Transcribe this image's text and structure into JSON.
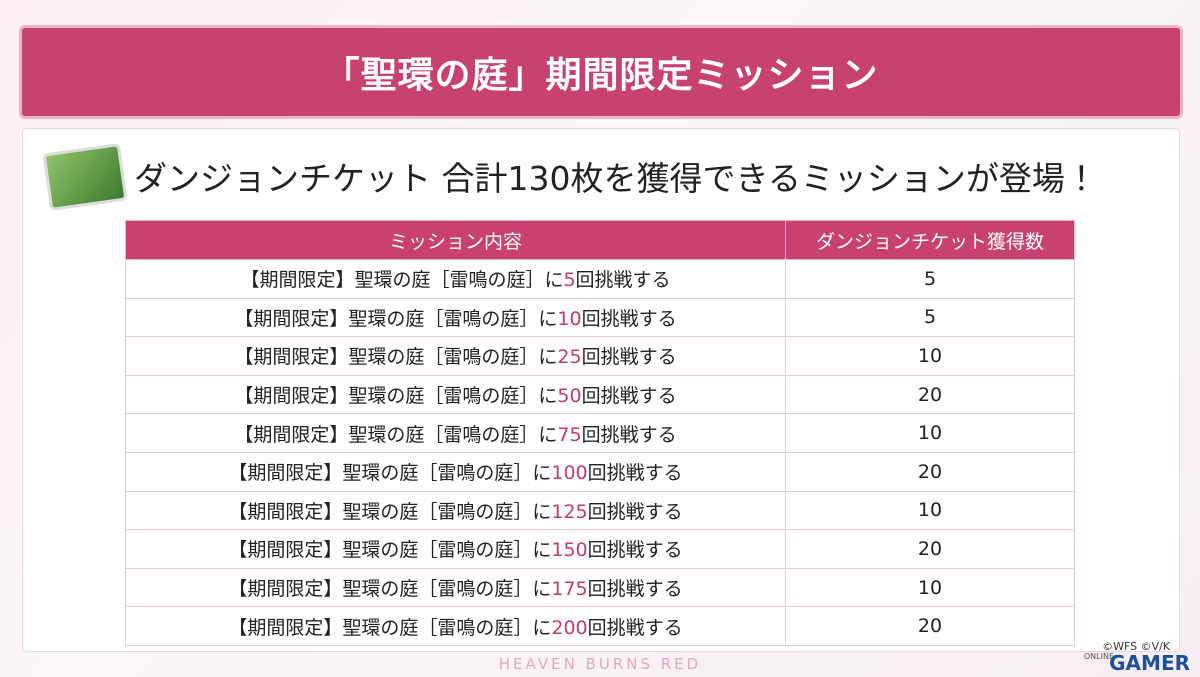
{
  "header": {
    "title": "「聖環の庭」期間限定ミッション"
  },
  "subtitle": "ダンジョンチケット 合計130枚を獲得できるミッションが登場！",
  "table": {
    "headers": [
      "ミッション内容",
      "ダンジョンチケット獲得数"
    ],
    "rows": [
      {
        "prefix": "【期間限定】聖環の庭［雷鳴の庭］に",
        "count": 5,
        "suffix": "回挑戦する",
        "tickets": 5
      },
      {
        "prefix": "【期間限定】聖環の庭［雷鳴の庭］に",
        "count": 10,
        "suffix": "回挑戦する",
        "tickets": 5
      },
      {
        "prefix": "【期間限定】聖環の庭［雷鳴の庭］に",
        "count": 25,
        "suffix": "回挑戦する",
        "tickets": 10
      },
      {
        "prefix": "【期間限定】聖環の庭［雷鳴の庭］に",
        "count": 50,
        "suffix": "回挑戦する",
        "tickets": 20
      },
      {
        "prefix": "【期間限定】聖環の庭［雷鳴の庭］に",
        "count": 75,
        "suffix": "回挑戦する",
        "tickets": 10
      },
      {
        "prefix": "【期間限定】聖環の庭［雷鳴の庭］に",
        "count": 100,
        "suffix": "回挑戦する",
        "tickets": 20
      },
      {
        "prefix": "【期間限定】聖環の庭［雷鳴の庭］に",
        "count": 125,
        "suffix": "回挑戦する",
        "tickets": 10
      },
      {
        "prefix": "【期間限定】聖環の庭［雷鳴の庭］に",
        "count": 150,
        "suffix": "回挑戦する",
        "tickets": 20
      },
      {
        "prefix": "【期間限定】聖環の庭［雷鳴の庭］に",
        "count": 175,
        "suffix": "回挑戦する",
        "tickets": 10
      },
      {
        "prefix": "【期間限定】聖環の庭［雷鳴の庭］に",
        "count": 200,
        "suffix": "回挑戦する",
        "tickets": 20
      }
    ]
  },
  "footer": {
    "logo": "HEAVEN BURNS RED",
    "copyright": "©WFS ©V/K",
    "watermark_small": "ONLINE",
    "watermark": "GAMER"
  }
}
